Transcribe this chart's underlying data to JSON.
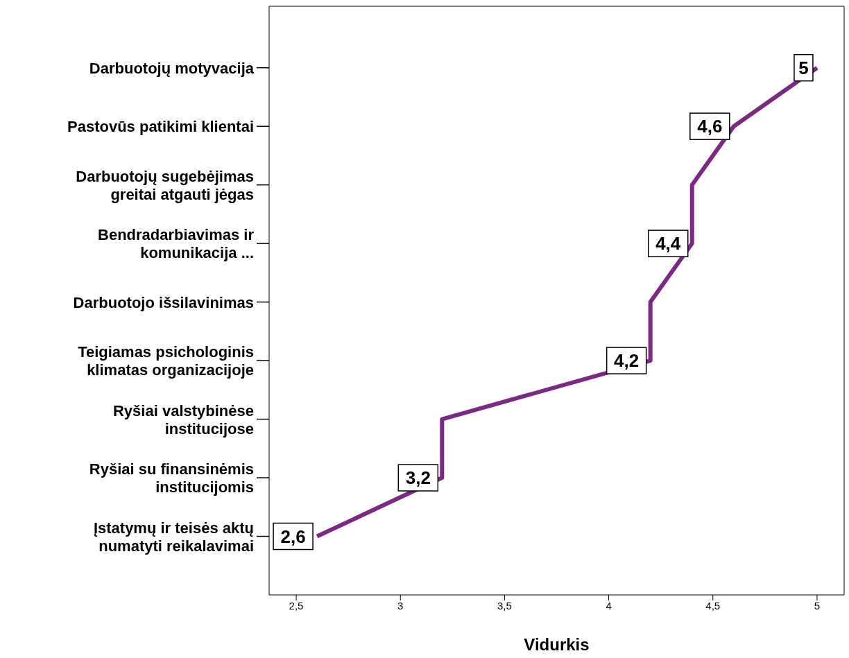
{
  "chart_data": {
    "type": "line",
    "orientation": "horizontal",
    "xlabel": "Vidurkis",
    "categories": [
      "Darbuotojų motyvacija",
      "Pastovūs patikimi klientai",
      "Darbuotojų sugebėjimas greitai atgauti jėgas",
      "Bendradarbiavimas ir komunikacija ...",
      "Darbuotojo išsilavinimas",
      "Teigiamas psichologinis klimatas organizacijoje",
      "Ryšiai valstybinėse institucijose",
      "Ryšiai su finansinėmis institucijomis",
      "Įstatymų ir teisės aktų numatyti reikalavimai"
    ],
    "values": [
      5,
      4.6,
      4.4,
      4.4,
      4.2,
      4.2,
      3.2,
      3.2,
      2.6
    ],
    "value_labels": [
      "5",
      "4,6",
      null,
      "4,4",
      null,
      "4,2",
      null,
      "3,2",
      "2,6"
    ],
    "color": "#7b2a83",
    "marker": "none",
    "line_style": "solid",
    "xlim": [
      2.37,
      5.13
    ],
    "xticks": [
      {
        "value": 2.5,
        "label": "2,5"
      },
      3,
      {
        "value": 3.5,
        "label": "3,5"
      },
      4,
      {
        "value": 4.5,
        "label": "4,5"
      },
      5
    ]
  }
}
